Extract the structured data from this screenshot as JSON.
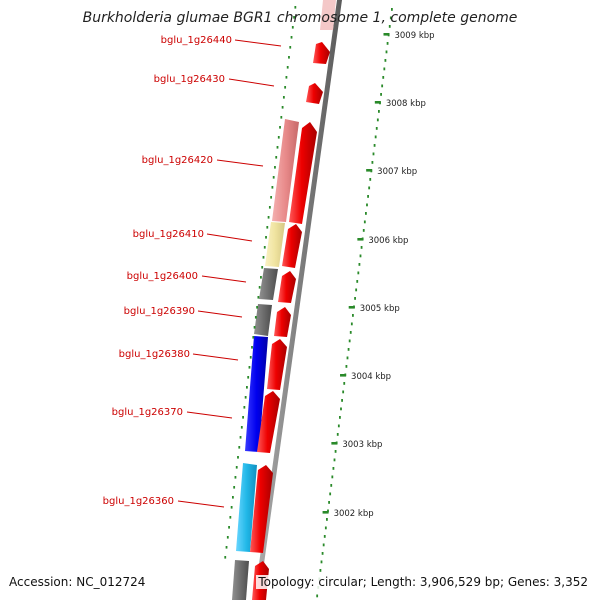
{
  "title": "Burkholderia glumae BGR1 chromosome 1, complete genome",
  "footer": {
    "accession": "Accession: NC_012724",
    "summary": "Topology: circular; Length: 3,906,529 bp; Genes: 3,352"
  },
  "colors": {
    "gene_label": "#cc0000",
    "forward_gene": "#ee0000",
    "backbone": "#808080",
    "ruler_dots": "#2a8a2a",
    "pink_feature": "#e88a8a",
    "yellow_feature": "#f0e4a0",
    "gray_feature": "#707070",
    "blue_feature": "#0000ee",
    "cyan_feature": "#22b8e8"
  },
  "ruler": {
    "ticks": [
      {
        "label": "3009 kbp"
      },
      {
        "label": "3008 kbp"
      },
      {
        "label": "3007 kbp"
      },
      {
        "label": "3006 kbp"
      },
      {
        "label": "3005 kbp"
      },
      {
        "label": "3004 kbp"
      },
      {
        "label": "3003 kbp"
      },
      {
        "label": "3002 kbp"
      }
    ]
  },
  "genes": [
    {
      "label": "bglu_1g26440"
    },
    {
      "label": "bglu_1g26430"
    },
    {
      "label": "bglu_1g26420"
    },
    {
      "label": "bglu_1g26410"
    },
    {
      "label": "bglu_1g26400"
    },
    {
      "label": "bglu_1g26390"
    },
    {
      "label": "bglu_1g26380"
    },
    {
      "label": "bglu_1g26370"
    },
    {
      "label": "bglu_1g26360"
    }
  ]
}
